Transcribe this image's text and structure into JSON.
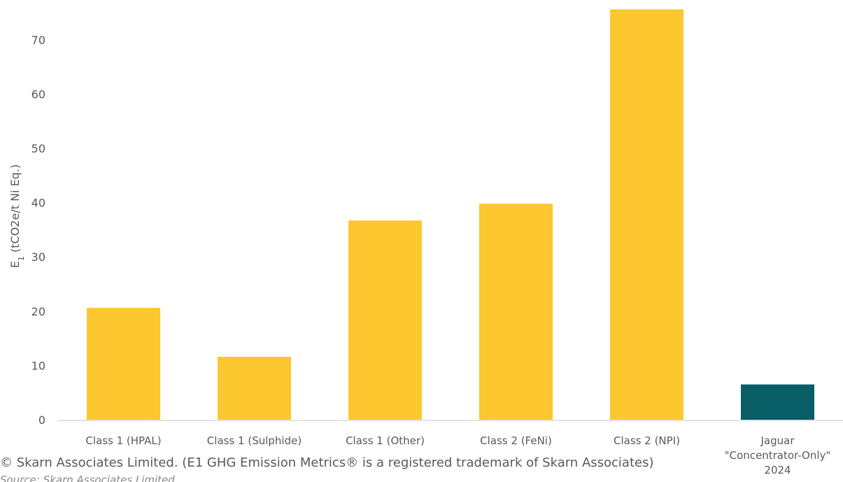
{
  "chart_data": {
    "type": "bar",
    "title": "",
    "xlabel": "",
    "ylabel": "E1 (tCO2e/t Ni Eq.)",
    "ylabel_main": "E",
    "ylabel_sub": "1",
    "ylabel_rest": " (tCO2e/t Ni Eq.)",
    "ylim": [
      0,
      75
    ],
    "yticks": [
      0,
      10,
      20,
      30,
      40,
      50,
      60,
      70
    ],
    "grid": false,
    "legend": "none",
    "categories": [
      [
        "Class 1 (HPAL)"
      ],
      [
        "Class 1 (Sulphide)"
      ],
      [
        "Class 1 (Other)"
      ],
      [
        "Class 2 (FeNi)"
      ],
      [
        "Class 2 (NPI)"
      ],
      [
        "Jaguar",
        "\"Concentrator-Only\"",
        "2024"
      ]
    ],
    "values": [
      20.6,
      11.6,
      36.7,
      39.8,
      75.6,
      6.5
    ],
    "colors": [
      "#fcc72f",
      "#fcc72f",
      "#fcc72f",
      "#fcc72f",
      "#fcc72f",
      "#095d67"
    ]
  },
  "footer": {
    "copyright": "© Skarn Associates Limited.  (E1 GHG Emission Metrics® is a registered trademark of Skarn Associates)",
    "source": "Source: Skarn Associates Limited"
  }
}
